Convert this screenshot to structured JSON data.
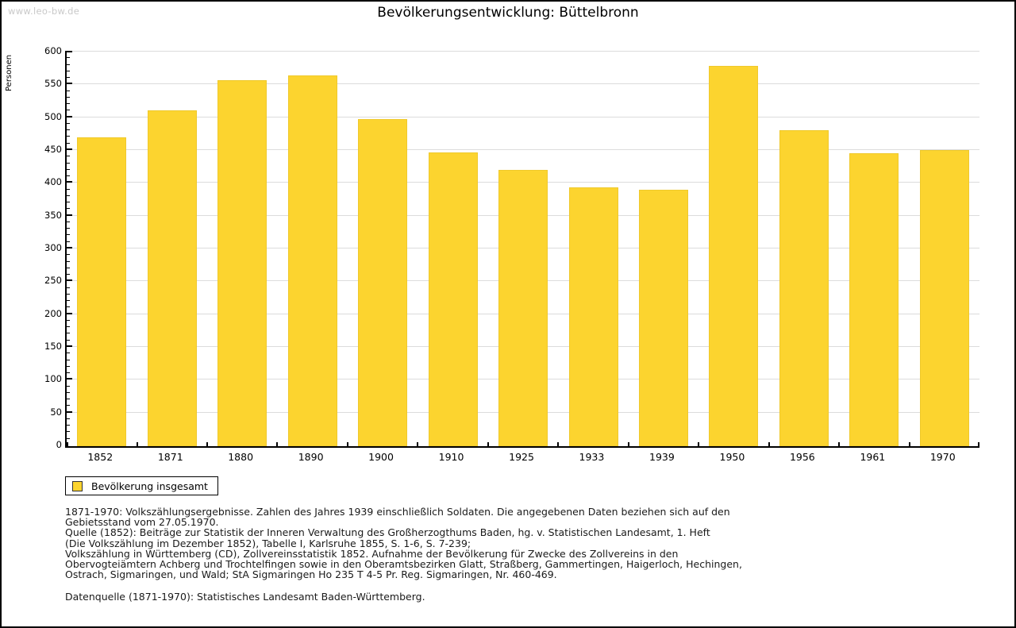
{
  "watermark": "www.leo-bw.de",
  "header": {
    "title": "Bevölkerungsentwicklung: Büttelbronn"
  },
  "chart_data": {
    "type": "bar",
    "title": "Bevölkerungsentwicklung: Büttelbronn",
    "xlabel": "",
    "ylabel": "Personen",
    "categories": [
      "1852",
      "1871",
      "1880",
      "1890",
      "1900",
      "1910",
      "1925",
      "1933",
      "1939",
      "1950",
      "1956",
      "1961",
      "1970"
    ],
    "values": [
      470,
      512,
      558,
      565,
      498,
      448,
      421,
      394,
      391,
      579,
      481,
      446,
      451
    ],
    "ylim": [
      0,
      600
    ],
    "y_major_step": 50,
    "y_minor_step": 10,
    "grid": true,
    "bar_color": "#fcd42f",
    "legend_position": "bottom-left",
    "legend": [
      {
        "label": "Bevölkerung insgesamt",
        "color": "#fcd42f"
      }
    ]
  },
  "legend": {
    "label": "Bevölkerung insgesamt"
  },
  "footnotes": {
    "lines": [
      "1871-1970: Volkszählungsergebnisse. Zahlen des Jahres 1939 einschließlich Soldaten. Die angegebenen Daten beziehen sich auf den",
      "Gebietsstand vom 27.05.1970.",
      "Quelle (1852): Beiträge zur Statistik der Inneren Verwaltung des Großherzogthums Baden, hg. v. Statistischen Landesamt, 1. Heft",
      "(Die Volkszählung im Dezember 1852), Tabelle I, Karlsruhe 1855, S. 1-6, S. 7-239;",
      "Volkszählung in Württemberg (CD), Zollvereinsstatistik 1852. Aufnahme der Bevölkerung für Zwecke des Zollvereins in den",
      "Obervogteiämtern Achberg und Trochtelfingen sowie in den Oberamtsbezirken Glatt, Straßberg, Gammertingen, Haigerloch, Hechingen,",
      "Ostrach, Sigmaringen, und Wald; StA Sigmaringen Ho 235 T 4-5 Pr. Reg. Sigmaringen, Nr. 460-469."
    ],
    "datasource": "Datenquelle (1871-1970): Statistisches Landesamt Baden-Württemberg."
  },
  "colors": {
    "bar": "#fcd42f",
    "grid": "#dcdcdc",
    "axis": "#000000",
    "watermark": "#c9c9c9",
    "background": "#ffffff"
  }
}
